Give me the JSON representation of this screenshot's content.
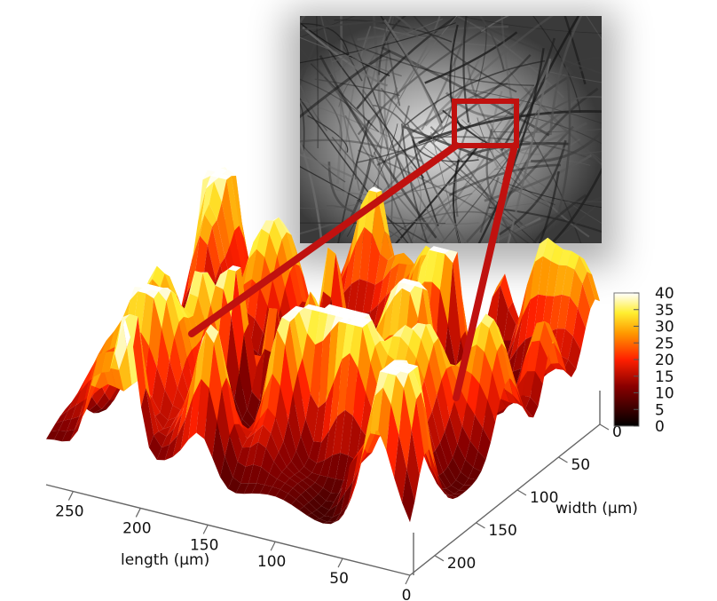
{
  "chart_data": {
    "type": "surface",
    "title": "",
    "xlabel": "length (µm)",
    "ylabel": "width (µm)",
    "zlabel": "",
    "x_ticks": [
      "250",
      "200",
      "150",
      "100",
      "50",
      "0"
    ],
    "y_ticks": [
      "0",
      "50",
      "100",
      "150",
      "200"
    ],
    "colorbar_ticks": [
      "40",
      "35",
      "30",
      "25",
      "20",
      "15",
      "10",
      "5",
      "0"
    ],
    "x_range": [
      0,
      270
    ],
    "y_range": [
      0,
      230
    ],
    "z_range": [
      0,
      40
    ],
    "colormap": "hot",
    "colors": {
      "highlight": "#c0110f",
      "colormap_low": "#000000",
      "colormap_mid": "#ff2a00",
      "colormap_high": "#ffffff"
    },
    "inset": {
      "type": "grayscale-micrograph",
      "description_icon": "fibre-network-image",
      "zoom_box_color": "#c0110f"
    }
  }
}
